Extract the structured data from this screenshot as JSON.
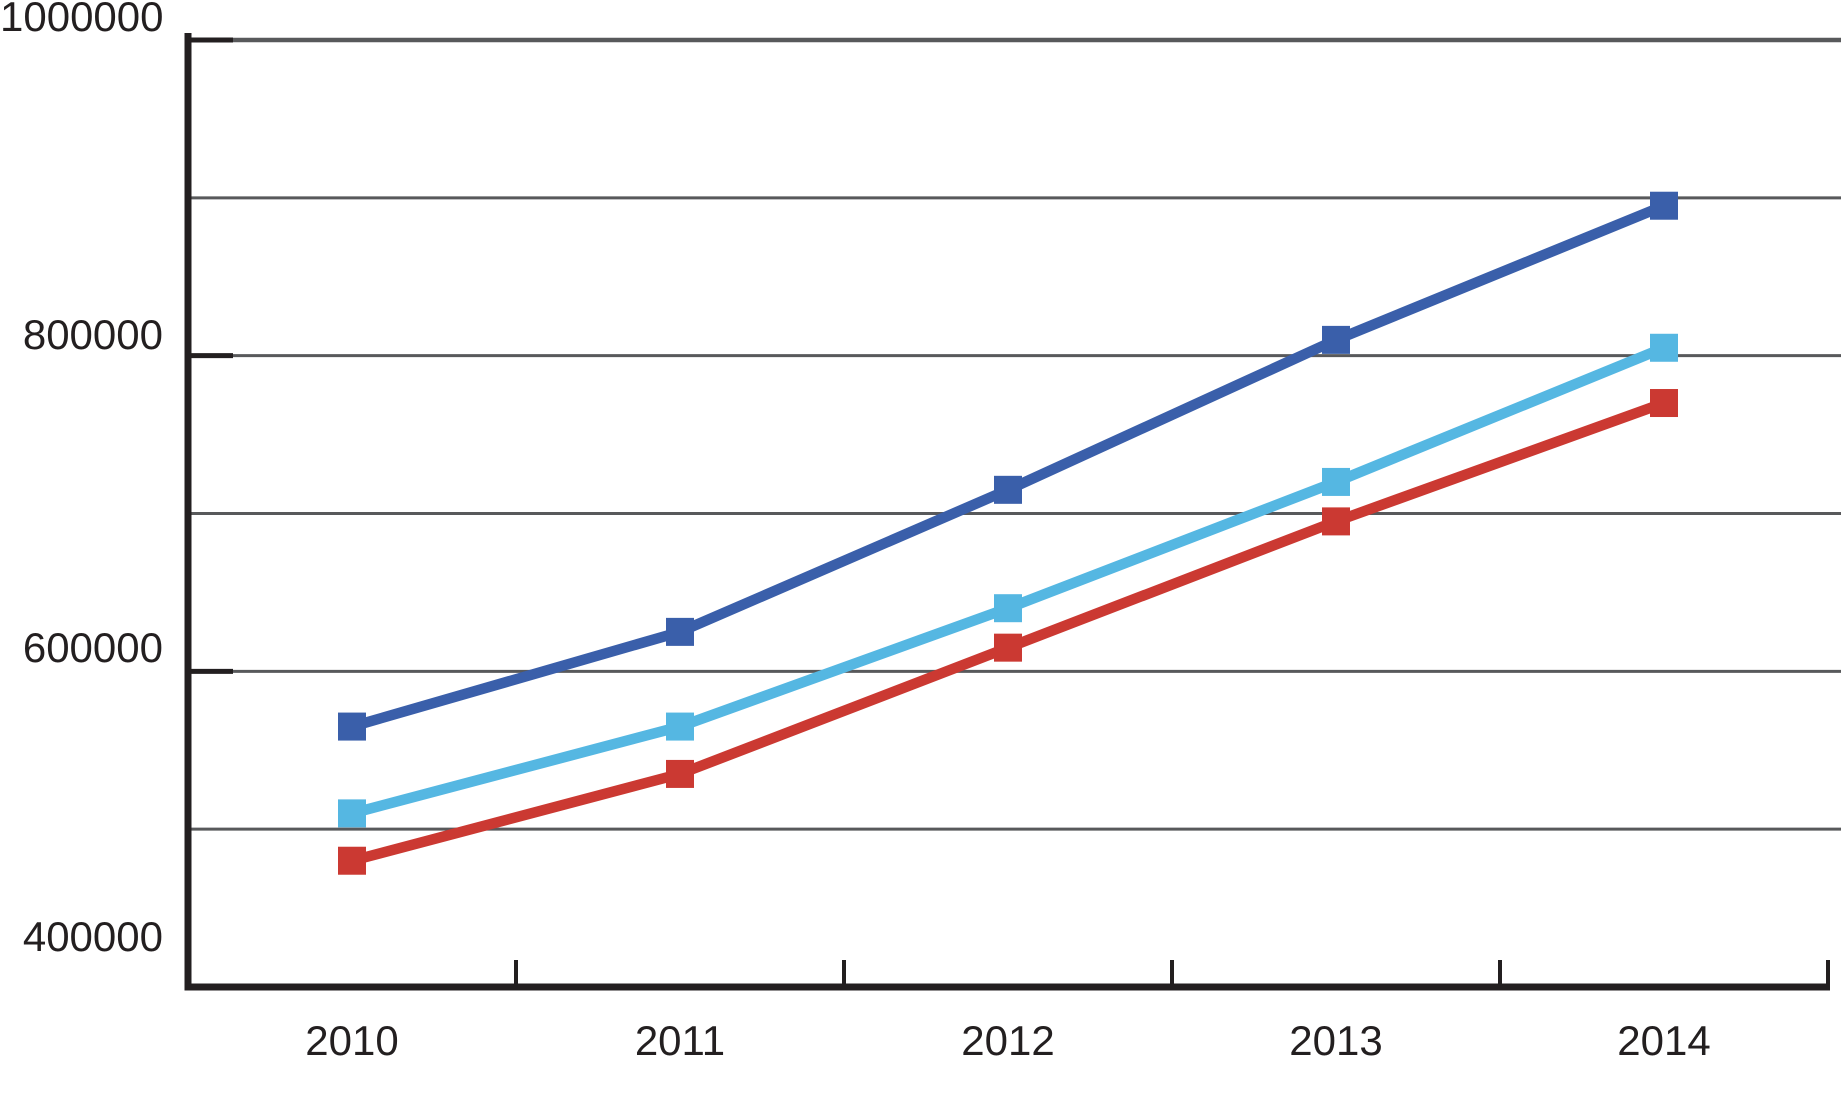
{
  "chart_data": {
    "type": "line",
    "title": "",
    "xlabel": "",
    "ylabel": "",
    "categories": [
      "2010",
      "2011",
      "2012",
      "2013",
      "2014"
    ],
    "series": [
      {
        "name": "dark-blue",
        "color": "#3A5FAA",
        "marker": "square",
        "values": [
          565000,
          625000,
          715000,
          810000,
          895000
        ]
      },
      {
        "name": "light-blue",
        "color": "#55B7E2",
        "marker": "square",
        "values": [
          510000,
          565000,
          640000,
          720000,
          805000
        ]
      },
      {
        "name": "red",
        "color": "#CB3932",
        "marker": "square",
        "values": [
          480000,
          535000,
          615000,
          695000,
          770000
        ]
      }
    ],
    "ylim": [
      400000,
      1000000
    ],
    "y_gridline_step": 100000,
    "y_tick_values": [
      400000,
      600000,
      800000,
      1000000
    ],
    "y_tick_labels": [
      "400000",
      "600000",
      "800000",
      "1000000"
    ],
    "grid": "horizontal",
    "legend": "none",
    "axis_color": "#231F20",
    "gridline_color": "#58595B",
    "background_color": "#FFFFFF"
  }
}
